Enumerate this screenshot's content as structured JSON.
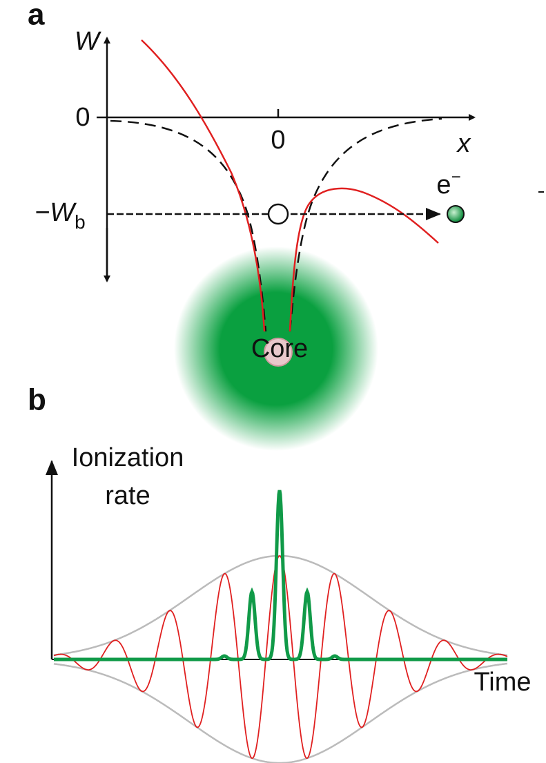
{
  "panel_a": {
    "label": "a",
    "y_axis_label": "W",
    "y_zero": "0",
    "x_zero": "0",
    "x_axis_label": "x",
    "binding_energy": {
      "main": "−W",
      "subscript": "b"
    },
    "electron": {
      "main": "e",
      "superscript": "−"
    },
    "core": "Core"
  },
  "panel_b": {
    "label": "b",
    "y_axis_label": [
      "Ionization",
      "rate"
    ],
    "x_axis_label": "Time"
  }
}
